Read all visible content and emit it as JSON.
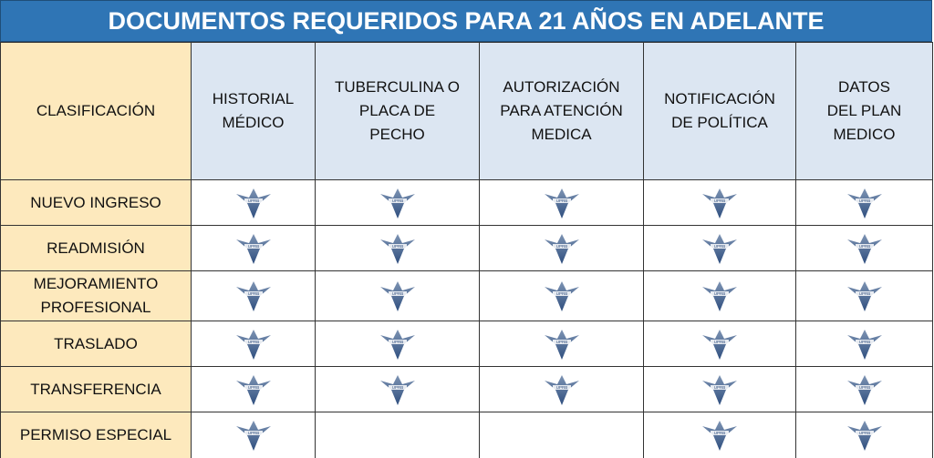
{
  "header": {
    "title": "DOCUMENTOS REQUERIDOS PARA 21 AÑOS EN ADELANTE"
  },
  "table": {
    "columns": [
      "CLASIFICACIÓN",
      "HISTORIAL MÉDICO",
      "TUBERCULINA O PLACA DE PECHO",
      "AUTORIZACIÓN PARA ATENCIÓN MEDICA",
      "NOTIFICACIÓN DE POLÍTICA",
      "DATOS DEL PLAN MEDICO"
    ],
    "rows": [
      "NUEVO INGRESO",
      "READMISIÓN",
      "MEJORAMIENTO PROFESIONAL",
      "TRASLADO",
      "TRANSFERENCIA",
      "PERMISO ESPECIAL"
    ]
  }
}
